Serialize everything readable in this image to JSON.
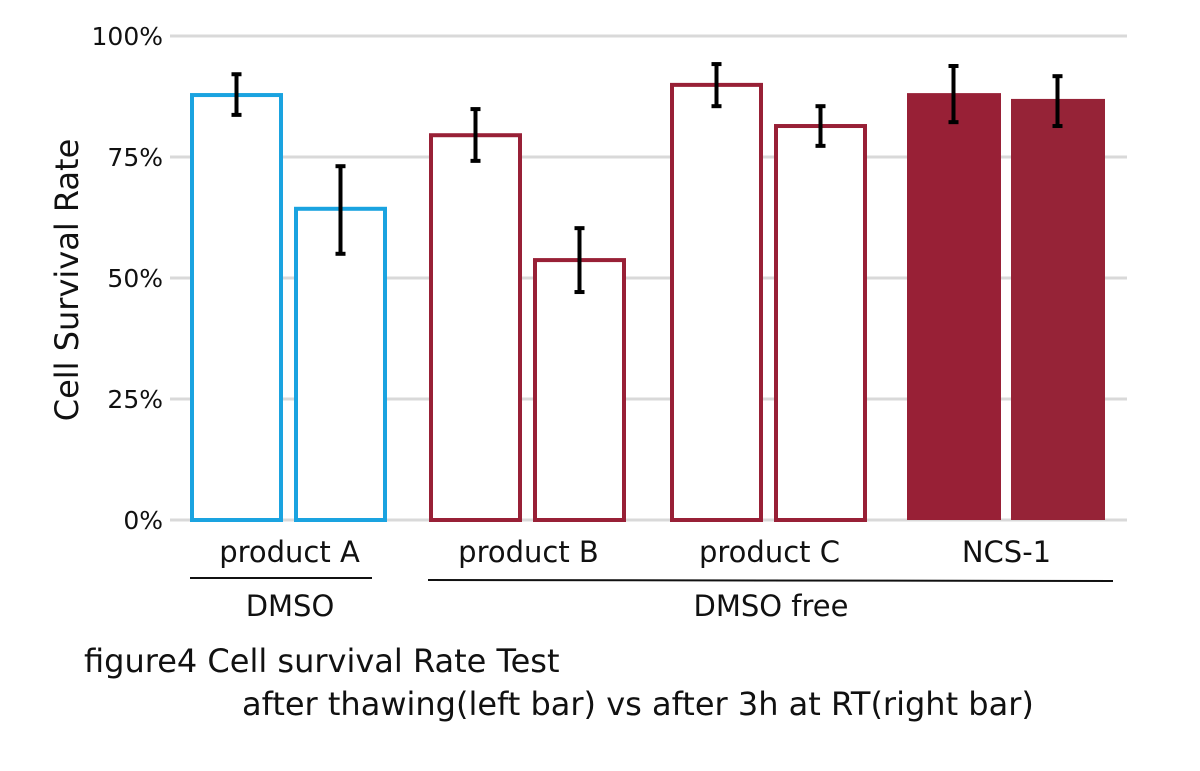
{
  "chart_data": {
    "type": "bar",
    "title": "figure4 Cell survival Rate Test",
    "subtitle": "after thawing(left bar) vs after 3h at RT(right bar)",
    "ylabel": "Cell Survival Rate",
    "xlabel": "",
    "ylim": [
      0,
      100
    ],
    "yticks": [
      "0%",
      "25%",
      "50%",
      "75%",
      "100%"
    ],
    "ytick_values": [
      0,
      25,
      50,
      75,
      100
    ],
    "grid": true,
    "categories": [
      "product A",
      "product B",
      "product C",
      "NCS-1"
    ],
    "groups": [
      {
        "label": "DMSO",
        "categories": [
          "product A"
        ]
      },
      {
        "label": "DMSO free",
        "categories": [
          "product B",
          "product C",
          "NCS-1"
        ]
      }
    ],
    "series": [
      {
        "name": "after thawing",
        "values": [
          87.8,
          79.5,
          89.9,
          88.2
        ],
        "err_low": [
          83.7,
          74.2,
          85.5,
          82.2
        ],
        "err_high": [
          92.1,
          84.9,
          94.2,
          93.8
        ]
      },
      {
        "name": "after 3h at RT",
        "values": [
          64.3,
          53.7,
          81.4,
          87.0
        ],
        "err_low": [
          55.0,
          47.1,
          77.3,
          81.4
        ],
        "err_high": [
          73.1,
          60.3,
          85.5,
          91.7
        ]
      }
    ],
    "styles": [
      {
        "color": "#1aa3e0",
        "filled": false
      },
      {
        "color": "#982036",
        "filled": false
      },
      {
        "color": "#982036",
        "filled": false
      },
      {
        "color": "#982036",
        "filled": true
      }
    ],
    "colors": {
      "grid": "#d9d9d9",
      "error": "#000000"
    }
  }
}
